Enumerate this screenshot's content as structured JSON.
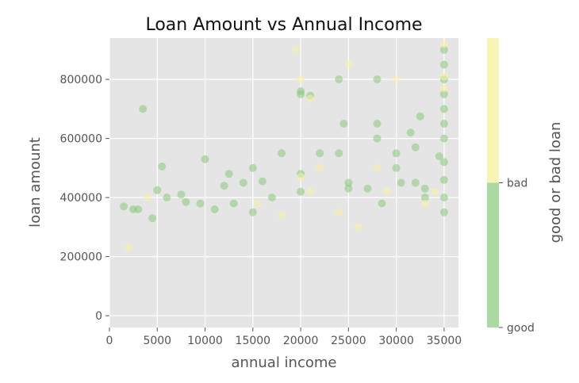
{
  "chart_data": {
    "type": "scatter",
    "title": "Loan Amount vs Annual Income",
    "xlabel": "annual income",
    "ylabel": "loan amount",
    "xlim": [
      0,
      36500
    ],
    "ylim": [
      -40000,
      940000
    ],
    "xticks": [
      0,
      5000,
      10000,
      15000,
      20000,
      25000,
      30000,
      35000
    ],
    "yticks": [
      0,
      200000,
      400000,
      600000,
      800000
    ],
    "grid": true,
    "style": "ggplot",
    "point_alpha": 0.55,
    "colorbar": {
      "label": "good or bad loan",
      "categories": [
        "good",
        "bad"
      ],
      "colors": [
        "#88c97a",
        "#f5f3a3"
      ]
    },
    "series": [
      {
        "category": "good",
        "color": "#88c97a",
        "points": [
          [
            3500,
            700000
          ],
          [
            5500,
            505000
          ],
          [
            10000,
            530000
          ],
          [
            12000,
            440000
          ],
          [
            12500,
            480000
          ],
          [
            14000,
            450000
          ],
          [
            15000,
            500000
          ],
          [
            16000,
            455000
          ],
          [
            17000,
            400000
          ],
          [
            18000,
            550000
          ],
          [
            20000,
            760000
          ],
          [
            20000,
            750000
          ],
          [
            21000,
            745000
          ],
          [
            22000,
            550000
          ],
          [
            24000,
            800000
          ],
          [
            24500,
            650000
          ],
          [
            24000,
            550000
          ],
          [
            25000,
            430000
          ],
          [
            28000,
            800000
          ],
          [
            28000,
            650000
          ],
          [
            28000,
            600000
          ],
          [
            30000,
            550000
          ],
          [
            31500,
            620000
          ],
          [
            32500,
            675000
          ],
          [
            32000,
            570000
          ],
          [
            33000,
            400000
          ],
          [
            34500,
            540000
          ],
          [
            35000,
            900000
          ],
          [
            35000,
            850000
          ],
          [
            35000,
            800000
          ],
          [
            35000,
            750000
          ],
          [
            35000,
            700000
          ],
          [
            35000,
            650000
          ],
          [
            35000,
            600000
          ],
          [
            35000,
            520000
          ],
          [
            35000,
            460000
          ],
          [
            35000,
            400000
          ],
          [
            35000,
            350000
          ],
          [
            1500,
            370000
          ],
          [
            2500,
            360000
          ],
          [
            3000,
            360000
          ],
          [
            4500,
            330000
          ],
          [
            5000,
            425000
          ],
          [
            6000,
            400000
          ],
          [
            7500,
            410000
          ],
          [
            8000,
            385000
          ],
          [
            9500,
            380000
          ],
          [
            11000,
            360000
          ],
          [
            13000,
            380000
          ],
          [
            15000,
            350000
          ],
          [
            20000,
            480000
          ],
          [
            20000,
            420000
          ],
          [
            25000,
            450000
          ],
          [
            27000,
            430000
          ],
          [
            28500,
            380000
          ],
          [
            30000,
            500000
          ],
          [
            30500,
            450000
          ],
          [
            32000,
            450000
          ],
          [
            33000,
            430000
          ]
        ]
      },
      {
        "category": "bad",
        "color": "#f5f3a3",
        "points": [
          [
            19500,
            900000
          ],
          [
            20000,
            800000
          ],
          [
            21000,
            735000
          ],
          [
            25000,
            850000
          ],
          [
            30000,
            800000
          ],
          [
            35000,
            920000
          ],
          [
            35000,
            810000
          ],
          [
            35000,
            770000
          ],
          [
            28000,
            500000
          ],
          [
            22000,
            500000
          ],
          [
            20000,
            470000
          ],
          [
            21000,
            420000
          ],
          [
            24000,
            350000
          ],
          [
            2000,
            230000
          ],
          [
            4000,
            400000
          ],
          [
            29000,
            420000
          ],
          [
            33000,
            380000
          ],
          [
            15500,
            380000
          ],
          [
            18000,
            340000
          ],
          [
            26000,
            300000
          ],
          [
            34000,
            420000
          ]
        ]
      }
    ]
  }
}
